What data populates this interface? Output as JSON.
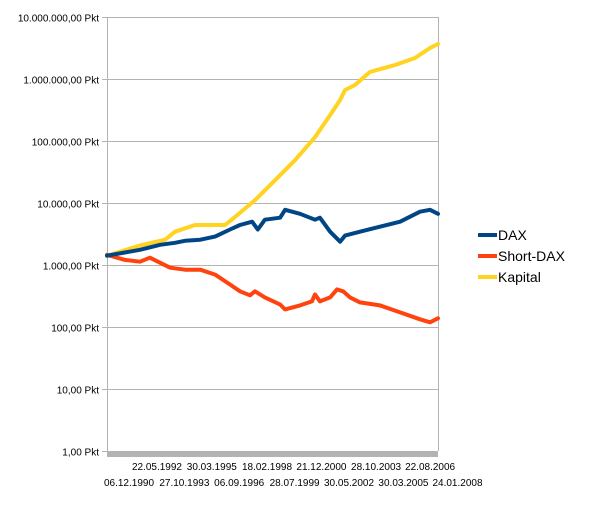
{
  "chart_data": {
    "type": "line",
    "title": "",
    "xlabel": "",
    "ylabel": "",
    "yscale": "log",
    "ylim": [
      1,
      10000000
    ],
    "xlim": [
      1990.93,
      2008.2
    ],
    "grid": true,
    "legend_position": "right",
    "y_ticks": [
      {
        "value": 10000000,
        "label": "10.000.000,00 Pkt"
      },
      {
        "value": 1000000,
        "label": "1.000.000,00 Pkt"
      },
      {
        "value": 100000,
        "label": "100.000,00 Pkt"
      },
      {
        "value": 10000,
        "label": "10.000,00 Pkt"
      },
      {
        "value": 1000,
        "label": "1.000,00 Pkt"
      },
      {
        "value": 100,
        "label": "100,00 Pkt"
      },
      {
        "value": 10,
        "label": "10,00 Pkt"
      },
      {
        "value": 1,
        "label": "1,00 Pkt"
      }
    ],
    "x_ticks_row1": [
      {
        "year": 1992.39,
        "label": "22.05.1992"
      },
      {
        "year": 1995.25,
        "label": "30.03.1995"
      },
      {
        "year": 1998.13,
        "label": "18.02.1998"
      },
      {
        "year": 2000.97,
        "label": "21.12.2000"
      },
      {
        "year": 2003.82,
        "label": "28.10.2003"
      },
      {
        "year": 2006.64,
        "label": "22.08.2006"
      }
    ],
    "x_ticks_row2": [
      {
        "year": 1990.93,
        "label": "06.12.1990"
      },
      {
        "year": 1993.82,
        "label": "27.10.1993"
      },
      {
        "year": 1996.68,
        "label": "06.09.1996"
      },
      {
        "year": 1999.57,
        "label": "28.07.1999"
      },
      {
        "year": 2002.41,
        "label": "30.05.2002"
      },
      {
        "year": 2005.25,
        "label": "30.03.2005"
      },
      {
        "year": 2008.07,
        "label": "24.01.2008"
      }
    ],
    "series": [
      {
        "name": "DAX",
        "color": "#004586",
        "points": [
          [
            1990.93,
            1410
          ],
          [
            1992.65,
            1760
          ],
          [
            1993.7,
            2120
          ],
          [
            1994.48,
            2280
          ],
          [
            1995.0,
            2460
          ],
          [
            1995.8,
            2560
          ],
          [
            1996.57,
            2870
          ],
          [
            1997.35,
            3740
          ],
          [
            1997.87,
            4420
          ],
          [
            1998.5,
            4990
          ],
          [
            1998.8,
            3740
          ],
          [
            1999.17,
            5380
          ],
          [
            1999.96,
            5790
          ],
          [
            2000.22,
            7780
          ],
          [
            2001.0,
            6700
          ],
          [
            2001.78,
            5380
          ],
          [
            2002.04,
            5790
          ],
          [
            2002.57,
            3440
          ],
          [
            2003.09,
            2380
          ],
          [
            2003.35,
            2980
          ],
          [
            2004.13,
            3440
          ],
          [
            2005.17,
            4140
          ],
          [
            2006.22,
            4990
          ],
          [
            2007.26,
            7240
          ],
          [
            2007.78,
            7780
          ],
          [
            2008.2,
            6700
          ]
        ]
      },
      {
        "name": "Short-DAX",
        "color": "#ff420e",
        "points": [
          [
            1990.93,
            1460
          ],
          [
            1991.87,
            1210
          ],
          [
            1992.65,
            1130
          ],
          [
            1993.17,
            1310
          ],
          [
            1994.22,
            905
          ],
          [
            1995.0,
            840
          ],
          [
            1995.8,
            840
          ],
          [
            1996.57,
            700
          ],
          [
            1997.35,
            485
          ],
          [
            1997.87,
            376
          ],
          [
            1998.39,
            324
          ],
          [
            1998.65,
            376
          ],
          [
            1999.17,
            300
          ],
          [
            1999.96,
            231
          ],
          [
            2000.22,
            192
          ],
          [
            2001.0,
            223
          ],
          [
            2001.62,
            259
          ],
          [
            2001.78,
            336
          ],
          [
            2002.04,
            259
          ],
          [
            2002.57,
            300
          ],
          [
            2002.93,
            404
          ],
          [
            2003.25,
            376
          ],
          [
            2003.61,
            300
          ],
          [
            2004.13,
            249
          ],
          [
            2005.17,
            223
          ],
          [
            2006.22,
            172
          ],
          [
            2007.26,
            133
          ],
          [
            2007.78,
            119
          ],
          [
            2008.2,
            138
          ]
        ]
      },
      {
        "name": "Kapital",
        "color": "#ffd320",
        "points": [
          [
            1990.93,
            1410
          ],
          [
            1992.65,
            2060
          ],
          [
            1993.96,
            2560
          ],
          [
            1994.48,
            3440
          ],
          [
            1995.52,
            4420
          ],
          [
            1997.09,
            4420
          ],
          [
            1997.61,
            5950
          ],
          [
            1998.65,
            11100
          ],
          [
            1999.7,
            23300
          ],
          [
            2000.74,
            49000
          ],
          [
            2001.78,
            115000
          ],
          [
            2002.57,
            262000
          ],
          [
            2003.09,
            458000
          ],
          [
            2003.35,
            664000
          ],
          [
            2003.87,
            800000
          ],
          [
            2004.65,
            1300000
          ],
          [
            2005.96,
            1680000
          ],
          [
            2007.0,
            2180000
          ],
          [
            2007.78,
            3160000
          ],
          [
            2008.2,
            3670000
          ]
        ]
      }
    ]
  }
}
